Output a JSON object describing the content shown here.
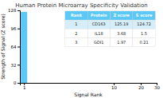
{
  "chart_data": {
    "type": "bar",
    "title": "Human Protein Microarray Specificity Validation",
    "x_label": "Signal Rank",
    "y_label": "Strength of Signal (Z score)",
    "x": [
      1
    ],
    "values": [
      125.19
    ],
    "color": "#5bc8f5",
    "log": "x",
    "grid": false,
    "xlim": [
      0.9,
      30
    ],
    "xticks": [
      1,
      10,
      20,
      30
    ],
    "ylim": [
      0,
      128
    ],
    "yticks": [
      0,
      32,
      64,
      96,
      128
    ],
    "table": {
      "header": [
        "Rank",
        "Protein",
        "Z score",
        "S score"
      ],
      "rows": [
        [
          "1",
          "CD163",
          "125.19",
          "124.72"
        ],
        [
          "2",
          "IL18",
          "3.68",
          "1.5"
        ],
        [
          "3",
          "GDI1",
          "1.97",
          "0.21"
        ]
      ]
    }
  }
}
